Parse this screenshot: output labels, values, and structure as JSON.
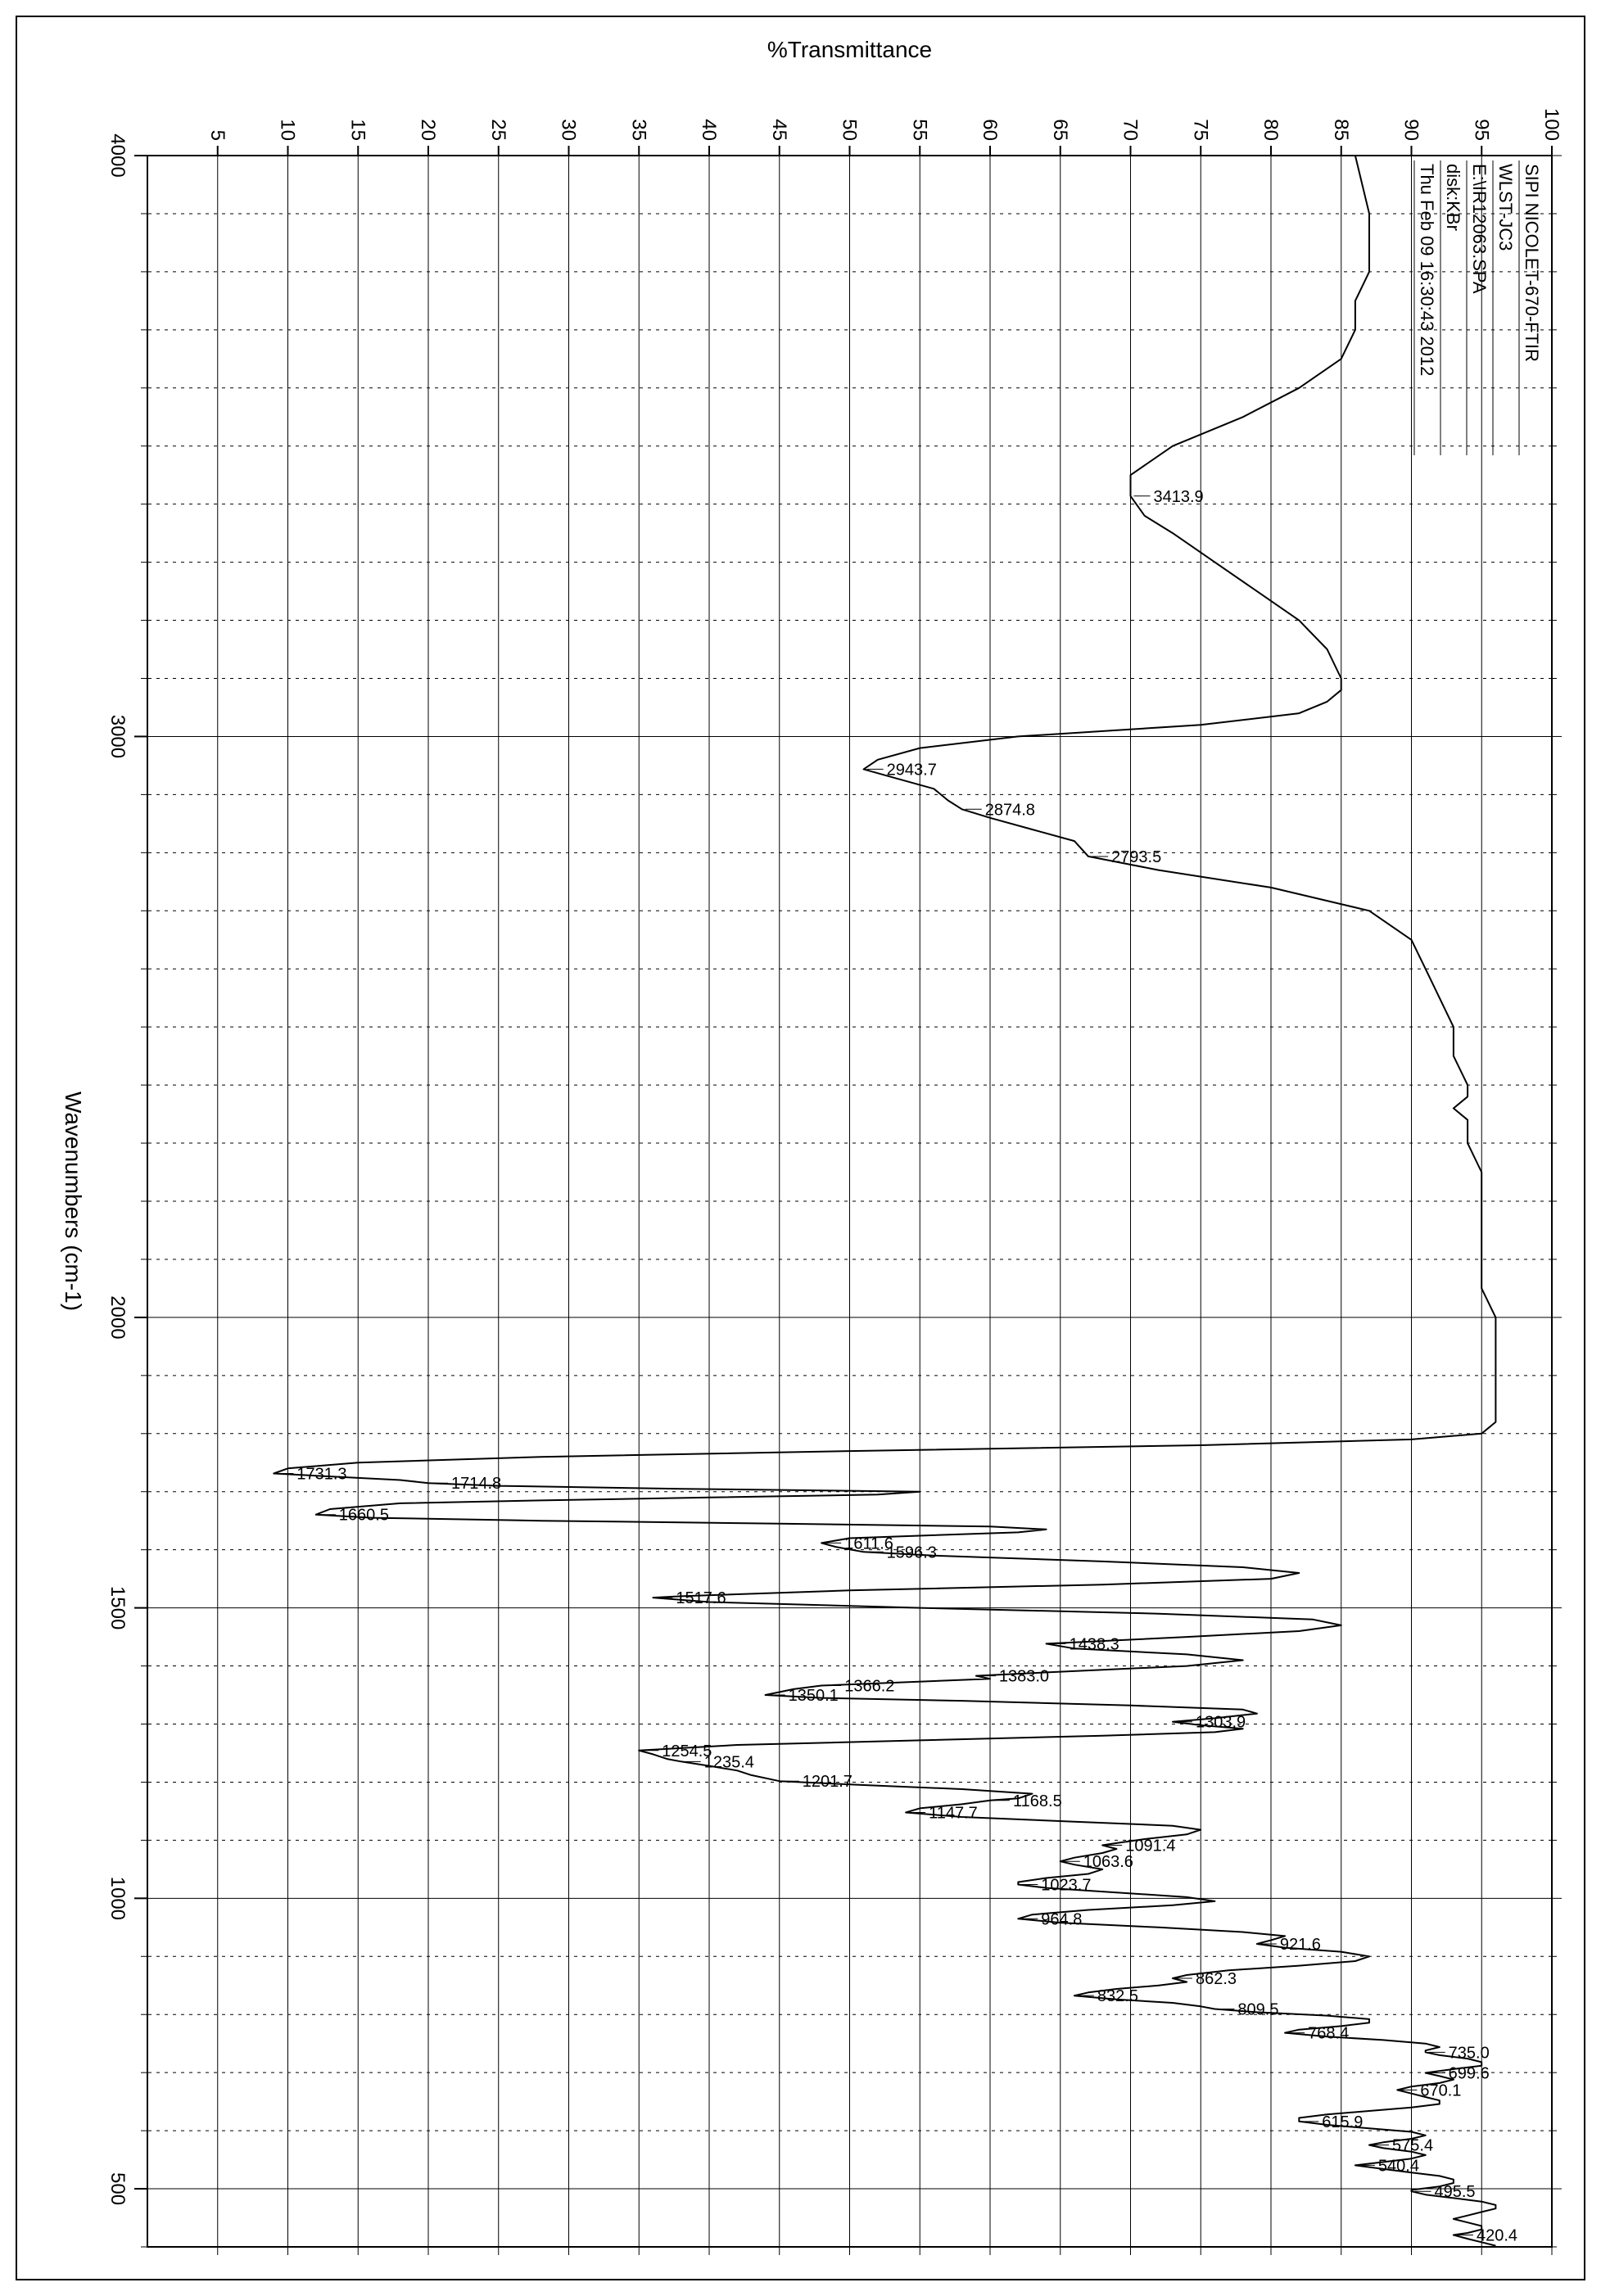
{
  "chart": {
    "type": "line",
    "orientation": "rotated-90deg",
    "xlabel": "Wavenumbers (cm-1)",
    "ylabel": "%Transmittance",
    "label_fontsize": 28,
    "tick_fontsize": 24,
    "peak_fontsize": 20,
    "background_color": "#ffffff",
    "axis_color": "#000000",
    "grid_major_color": "#000000",
    "grid_minor_dash": "4 6",
    "line_color": "#000000",
    "line_width": 2,
    "xlim": [
      4000,
      400
    ],
    "ylim": [
      0,
      100
    ],
    "y_ticks": [
      100,
      95,
      90,
      85,
      80,
      75,
      70,
      65,
      60,
      55,
      50,
      45,
      40,
      35,
      30,
      25,
      20,
      15,
      10,
      5
    ],
    "x_major_ticks": [
      4000,
      3000,
      2000,
      1500,
      1000,
      500
    ],
    "x_minor_step": 100,
    "metadata_box": {
      "lines": [
        "SIPI NICOLET-670-FTIR",
        "WLST-JC3",
        "E:\\IR12063.SPA",
        "disk:KBr",
        "Thu Feb 09 16:30:43 2012"
      ]
    },
    "peaks": [
      {
        "wn": 3413.9,
        "t": 70
      },
      {
        "wn": 2943.7,
        "t": 51
      },
      {
        "wn": 2874.8,
        "t": 58
      },
      {
        "wn": 2793.5,
        "t": 67
      },
      {
        "wn": 1731.3,
        "t": 9
      },
      {
        "wn": 1714.8,
        "t": 20
      },
      {
        "wn": 1660.5,
        "t": 12
      },
      {
        "wn": 1611.6,
        "t": 48
      },
      {
        "wn": 1596.3,
        "t": 51
      },
      {
        "wn": 1517.6,
        "t": 36
      },
      {
        "wn": 1438.3,
        "t": 64
      },
      {
        "wn": 1383.0,
        "t": 59
      },
      {
        "wn": 1366.2,
        "t": 48
      },
      {
        "wn": 1350.1,
        "t": 44
      },
      {
        "wn": 1303.9,
        "t": 73
      },
      {
        "wn": 1254.5,
        "t": 35
      },
      {
        "wn": 1235.4,
        "t": 38
      },
      {
        "wn": 1201.7,
        "t": 45
      },
      {
        "wn": 1168.5,
        "t": 60
      },
      {
        "wn": 1147.7,
        "t": 54
      },
      {
        "wn": 1091.4,
        "t": 68
      },
      {
        "wn": 1063.6,
        "t": 65
      },
      {
        "wn": 1023.7,
        "t": 62
      },
      {
        "wn": 964.8,
        "t": 62
      },
      {
        "wn": 921.6,
        "t": 79
      },
      {
        "wn": 862.3,
        "t": 73
      },
      {
        "wn": 832.5,
        "t": 66
      },
      {
        "wn": 809.5,
        "t": 76
      },
      {
        "wn": 768.4,
        "t": 81
      },
      {
        "wn": 735.0,
        "t": 91
      },
      {
        "wn": 699.6,
        "t": 91
      },
      {
        "wn": 670.1,
        "t": 89
      },
      {
        "wn": 615.9,
        "t": 82
      },
      {
        "wn": 575.4,
        "t": 87
      },
      {
        "wn": 540.4,
        "t": 86
      },
      {
        "wn": 495.5,
        "t": 90
      },
      {
        "wn": 420.4,
        "t": 93
      }
    ],
    "spectrum": [
      [
        4000,
        86
      ],
      [
        3900,
        87
      ],
      [
        3850,
        87
      ],
      [
        3800,
        87
      ],
      [
        3750,
        86
      ],
      [
        3700,
        86
      ],
      [
        3650,
        85
      ],
      [
        3600,
        82
      ],
      [
        3550,
        78
      ],
      [
        3500,
        73
      ],
      [
        3450,
        70
      ],
      [
        3413.9,
        70
      ],
      [
        3380,
        71
      ],
      [
        3350,
        73
      ],
      [
        3300,
        76
      ],
      [
        3250,
        79
      ],
      [
        3200,
        82
      ],
      [
        3150,
        84
      ],
      [
        3100,
        85
      ],
      [
        3080,
        85
      ],
      [
        3060,
        84
      ],
      [
        3040,
        82
      ],
      [
        3020,
        75
      ],
      [
        3000,
        62
      ],
      [
        2980,
        55
      ],
      [
        2960,
        52
      ],
      [
        2943.7,
        51
      ],
      [
        2930,
        53
      ],
      [
        2910,
        56
      ],
      [
        2890,
        57
      ],
      [
        2874.8,
        58
      ],
      [
        2860,
        60
      ],
      [
        2840,
        63
      ],
      [
        2820,
        66
      ],
      [
        2793.5,
        67
      ],
      [
        2770,
        72
      ],
      [
        2740,
        80
      ],
      [
        2700,
        87
      ],
      [
        2650,
        90
      ],
      [
        2600,
        91
      ],
      [
        2550,
        92
      ],
      [
        2500,
        93
      ],
      [
        2450,
        93
      ],
      [
        2400,
        94
      ],
      [
        2380,
        94
      ],
      [
        2360,
        93
      ],
      [
        2340,
        94
      ],
      [
        2300,
        94
      ],
      [
        2250,
        95
      ],
      [
        2200,
        95
      ],
      [
        2150,
        95
      ],
      [
        2100,
        95
      ],
      [
        2050,
        95
      ],
      [
        2000,
        96
      ],
      [
        1950,
        96
      ],
      [
        1900,
        96
      ],
      [
        1870,
        96
      ],
      [
        1850,
        96
      ],
      [
        1820,
        96
      ],
      [
        1800,
        95
      ],
      [
        1790,
        90
      ],
      [
        1780,
        75
      ],
      [
        1770,
        50
      ],
      [
        1760,
        28
      ],
      [
        1750,
        15
      ],
      [
        1740,
        10
      ],
      [
        1731.3,
        9
      ],
      [
        1725,
        14
      ],
      [
        1720,
        18
      ],
      [
        1714.8,
        20
      ],
      [
        1710,
        25
      ],
      [
        1705,
        38
      ],
      [
        1700,
        55
      ],
      [
        1695,
        52
      ],
      [
        1690,
        40
      ],
      [
        1685,
        28
      ],
      [
        1680,
        18
      ],
      [
        1670,
        13
      ],
      [
        1660.5,
        12
      ],
      [
        1655,
        16
      ],
      [
        1650,
        28
      ],
      [
        1645,
        45
      ],
      [
        1640,
        60
      ],
      [
        1635,
        64
      ],
      [
        1630,
        62
      ],
      [
        1625,
        56
      ],
      [
        1620,
        50
      ],
      [
        1611.6,
        48
      ],
      [
        1605,
        49
      ],
      [
        1596.3,
        51
      ],
      [
        1590,
        56
      ],
      [
        1580,
        68
      ],
      [
        1570,
        78
      ],
      [
        1560,
        82
      ],
      [
        1550,
        80
      ],
      [
        1540,
        68
      ],
      [
        1530,
        50
      ],
      [
        1520,
        38
      ],
      [
        1517.6,
        36
      ],
      [
        1510,
        40
      ],
      [
        1500,
        55
      ],
      [
        1490,
        72
      ],
      [
        1480,
        83
      ],
      [
        1470,
        85
      ],
      [
        1460,
        82
      ],
      [
        1450,
        74
      ],
      [
        1438.3,
        64
      ],
      [
        1430,
        66
      ],
      [
        1420,
        74
      ],
      [
        1410,
        78
      ],
      [
        1400,
        74
      ],
      [
        1390,
        65
      ],
      [
        1383,
        59
      ],
      [
        1378,
        60
      ],
      [
        1372,
        54
      ],
      [
        1366.2,
        48
      ],
      [
        1360,
        46
      ],
      [
        1350.1,
        44
      ],
      [
        1345,
        48
      ],
      [
        1340,
        58
      ],
      [
        1332,
        70
      ],
      [
        1325,
        78
      ],
      [
        1318,
        79
      ],
      [
        1310,
        76
      ],
      [
        1303.9,
        73
      ],
      [
        1298,
        75
      ],
      [
        1292,
        78
      ],
      [
        1286,
        76
      ],
      [
        1280,
        68
      ],
      [
        1272,
        55
      ],
      [
        1264,
        42
      ],
      [
        1254.5,
        35
      ],
      [
        1248,
        36
      ],
      [
        1240,
        37
      ],
      [
        1235.4,
        38
      ],
      [
        1228,
        40
      ],
      [
        1220,
        42
      ],
      [
        1212,
        43
      ],
      [
        1201.7,
        45
      ],
      [
        1195,
        51
      ],
      [
        1188,
        58
      ],
      [
        1180,
        63
      ],
      [
        1172,
        62
      ],
      [
        1168.5,
        60
      ],
      [
        1162,
        58
      ],
      [
        1155,
        55
      ],
      [
        1147.7,
        54
      ],
      [
        1140,
        58
      ],
      [
        1132,
        66
      ],
      [
        1125,
        73
      ],
      [
        1118,
        75
      ],
      [
        1110,
        74
      ],
      [
        1102,
        71
      ],
      [
        1095,
        69
      ],
      [
        1091.4,
        68
      ],
      [
        1085,
        69
      ],
      [
        1078,
        68
      ],
      [
        1070,
        66
      ],
      [
        1063.6,
        65
      ],
      [
        1058,
        66
      ],
      [
        1050,
        68
      ],
      [
        1042,
        67
      ],
      [
        1035,
        64
      ],
      [
        1028,
        62
      ],
      [
        1023.7,
        62
      ],
      [
        1018,
        64
      ],
      [
        1010,
        69
      ],
      [
        1002,
        74
      ],
      [
        995,
        76
      ],
      [
        988,
        73
      ],
      [
        980,
        67
      ],
      [
        972,
        63
      ],
      [
        964.8,
        62
      ],
      [
        958,
        65
      ],
      [
        950,
        72
      ],
      [
        942,
        78
      ],
      [
        935,
        81
      ],
      [
        928,
        80
      ],
      [
        921.6,
        79
      ],
      [
        915,
        81
      ],
      [
        908,
        85
      ],
      [
        900,
        87
      ],
      [
        892,
        86
      ],
      [
        884,
        82
      ],
      [
        876,
        77
      ],
      [
        868,
        74
      ],
      [
        862.3,
        73
      ],
      [
        856,
        74
      ],
      [
        850,
        72
      ],
      [
        844,
        69
      ],
      [
        838,
        67
      ],
      [
        832.5,
        66
      ],
      [
        826,
        69
      ],
      [
        820,
        73
      ],
      [
        814,
        75
      ],
      [
        809.5,
        76
      ],
      [
        804,
        79
      ],
      [
        798,
        84
      ],
      [
        792,
        87
      ],
      [
        786,
        87
      ],
      [
        780,
        85
      ],
      [
        774,
        82
      ],
      [
        768.4,
        81
      ],
      [
        762,
        84
      ],
      [
        756,
        88
      ],
      [
        750,
        91
      ],
      [
        744,
        92
      ],
      [
        738,
        91
      ],
      [
        735,
        91
      ],
      [
        730,
        92
      ],
      [
        724,
        94
      ],
      [
        718,
        95
      ],
      [
        712,
        95
      ],
      [
        706,
        93
      ],
      [
        699.6,
        91
      ],
      [
        694,
        92
      ],
      [
        688,
        93
      ],
      [
        682,
        92
      ],
      [
        676,
        90
      ],
      [
        670.1,
        89
      ],
      [
        664,
        90
      ],
      [
        658,
        91
      ],
      [
        652,
        92
      ],
      [
        646,
        92
      ],
      [
        640,
        90
      ],
      [
        634,
        87
      ],
      [
        628,
        84
      ],
      [
        622,
        82
      ],
      [
        615.9,
        82
      ],
      [
        610,
        84
      ],
      [
        604,
        87
      ],
      [
        598,
        90
      ],
      [
        592,
        91
      ],
      [
        586,
        90
      ],
      [
        580,
        88
      ],
      [
        575.4,
        87
      ],
      [
        570,
        88
      ],
      [
        564,
        90
      ],
      [
        558,
        91
      ],
      [
        552,
        90
      ],
      [
        546,
        88
      ],
      [
        540.4,
        86
      ],
      [
        534,
        88
      ],
      [
        528,
        90
      ],
      [
        522,
        92
      ],
      [
        516,
        93
      ],
      [
        510,
        93
      ],
      [
        504,
        92
      ],
      [
        498,
        90
      ],
      [
        495.5,
        90
      ],
      [
        490,
        91
      ],
      [
        484,
        93
      ],
      [
        478,
        95
      ],
      [
        472,
        96
      ],
      [
        466,
        96
      ],
      [
        460,
        95
      ],
      [
        454,
        94
      ],
      [
        448,
        93
      ],
      [
        442,
        94
      ],
      [
        436,
        95
      ],
      [
        430,
        95
      ],
      [
        424,
        94
      ],
      [
        420.4,
        93
      ],
      [
        414,
        94
      ],
      [
        408,
        95
      ],
      [
        402,
        96
      ]
    ]
  }
}
